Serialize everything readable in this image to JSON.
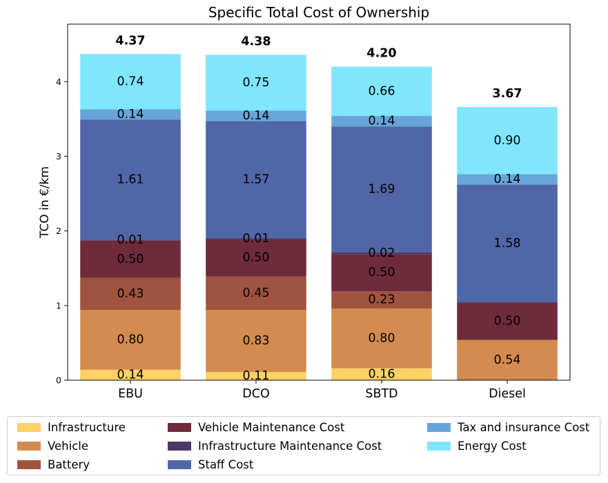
{
  "chart_data": {
    "type": "bar",
    "stacked": true,
    "title": "Specific Total Cost of Ownership",
    "ylabel": "TCO in €/km",
    "xlabel": "",
    "ylim": [
      0,
      4.77
    ],
    "yticks": [
      "0",
      "1",
      "2",
      "3",
      "4"
    ],
    "categories": [
      "EBU",
      "DCO",
      "SBTD",
      "Diesel"
    ],
    "totals": [
      "4.37",
      "4.38",
      "4.20",
      "3.67"
    ],
    "series": [
      {
        "name": "Infrastructure",
        "color": "#FFD166",
        "values": [
          0.14,
          0.11,
          0.16,
          0
        ],
        "labels": [
          "0.14",
          "0.11",
          "0.16",
          ""
        ]
      },
      {
        "name": "Vehicle",
        "color": "#D38B4F",
        "values": [
          0.8,
          0.83,
          0.8,
          0.54
        ],
        "labels": [
          "0.80",
          "0.83",
          "0.80",
          "0.54"
        ]
      },
      {
        "name": "Battery",
        "color": "#A0533E",
        "values": [
          0.43,
          0.45,
          0.23,
          0
        ],
        "labels": [
          "0.43",
          "0.45",
          "0.23",
          ""
        ]
      },
      {
        "name": "Vehicle Maintenance Cost",
        "color": "#6D2B3B",
        "values": [
          0.5,
          0.5,
          0.5,
          0.5
        ],
        "labels": [
          "0.50",
          "0.50",
          "0.50",
          "0.50"
        ]
      },
      {
        "name": "Infrastructure Maintenance Cost",
        "color": "#4B3868",
        "values": [
          0.01,
          0.01,
          0.02,
          0
        ],
        "labels": [
          "0.01",
          "0.01",
          "0.02",
          ""
        ]
      },
      {
        "name": "Staff Cost",
        "color": "#5066A6",
        "values": [
          1.61,
          1.57,
          1.69,
          1.58
        ],
        "labels": [
          "1.61",
          "1.57",
          "1.69",
          "1.58"
        ]
      },
      {
        "name": "Tax and insurance Cost",
        "color": "#67A5D8",
        "values": [
          0.14,
          0.14,
          0.14,
          0.14
        ],
        "labels": [
          "0.14",
          "0.14",
          "0.14",
          "0.14"
        ]
      },
      {
        "name": "Energy Cost",
        "color": "#7FE6FE",
        "values": [
          0.74,
          0.75,
          0.66,
          0.9
        ],
        "labels": [
          "0.74",
          "0.75",
          "0.66",
          "0.90"
        ]
      }
    ],
    "legend": {
      "position": "bottom",
      "columns": 3
    }
  }
}
